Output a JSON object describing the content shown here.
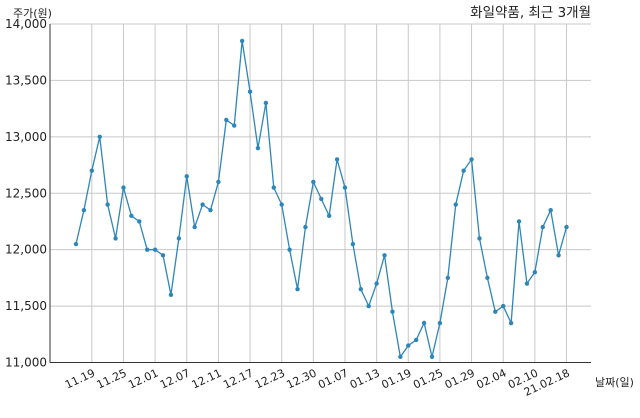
{
  "chart_data": {
    "type": "line",
    "title": "화일약품, 최근 3개월",
    "ylabel": "주가(원)",
    "xlabel": "날짜(일)",
    "ylim": [
      11000,
      14000
    ],
    "yticks": [
      11000,
      11500,
      12000,
      12500,
      13000,
      13500,
      14000
    ],
    "ytick_labels": [
      "11,000",
      "11,500",
      "12,000",
      "12,500",
      "13,000",
      "13,500",
      "14,000"
    ],
    "xticks": [
      {
        "label": "11.19",
        "index": 2
      },
      {
        "label": "11.25",
        "index": 6
      },
      {
        "label": "12.01",
        "index": 10
      },
      {
        "label": "12.07",
        "index": 14
      },
      {
        "label": "12.11",
        "index": 18
      },
      {
        "label": "12.17",
        "index": 22
      },
      {
        "label": "12.23",
        "index": 26
      },
      {
        "label": "12.30",
        "index": 30
      },
      {
        "label": "01.07",
        "index": 34
      },
      {
        "label": "01.13",
        "index": 38
      },
      {
        "label": "01.19",
        "index": 42
      },
      {
        "label": "01.25",
        "index": 46
      },
      {
        "label": "01.29",
        "index": 50
      },
      {
        "label": "02.04",
        "index": 54
      },
      {
        "label": "02.10",
        "index": 58
      },
      {
        "label": "21.02.18",
        "index": 62
      }
    ],
    "grid": true,
    "color": "#2e86b8",
    "series": [
      {
        "values": [
          12050,
          12350,
          12700,
          13000,
          12400,
          12100,
          12550,
          12300,
          12250,
          12000,
          12000,
          11950,
          11600,
          12100,
          12650,
          12200,
          12400,
          12350,
          12600,
          13150,
          13100,
          13850,
          13400,
          12900,
          13300,
          12550,
          12400,
          12000,
          11650,
          12200,
          12600,
          12450,
          12300,
          12800,
          12550,
          12050,
          11650,
          11500,
          11700,
          11950,
          11450,
          11050,
          11150,
          11200,
          11350,
          11050,
          11350,
          11750,
          12400,
          12700,
          12800,
          12100,
          11750,
          11450,
          11500,
          11350,
          12250,
          11700,
          11800,
          12200,
          12350,
          11950,
          12200
        ]
      }
    ]
  }
}
